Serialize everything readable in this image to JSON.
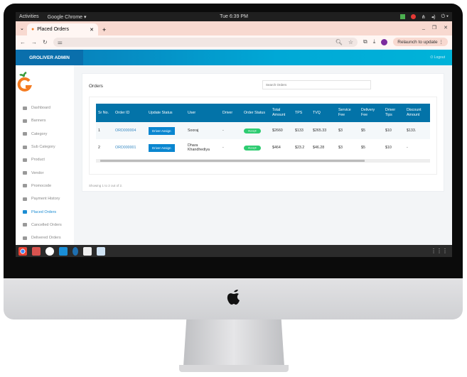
{
  "system": {
    "activities": "Activities",
    "app": "Google Chrome ▾",
    "clock": "Tue 6:39 PM"
  },
  "browser": {
    "tab_title": "Placed Orders",
    "relaunch": "Relaunch to update",
    "profile_initial": "T"
  },
  "app": {
    "brand": "GROLIVER ADMIN",
    "logout": "Logout",
    "accent": "#0373a8"
  },
  "sidebar": {
    "items": [
      {
        "label": "Dashboard",
        "icon": "dashboard-icon"
      },
      {
        "label": "Banners",
        "icon": "image-icon"
      },
      {
        "label": "Category",
        "icon": "list-icon"
      },
      {
        "label": "Sub Category",
        "icon": "list-icon"
      },
      {
        "label": "Product",
        "icon": "apple-icon"
      },
      {
        "label": "Vendor",
        "icon": "users-icon"
      },
      {
        "label": "Promocode",
        "icon": "code-icon"
      },
      {
        "label": "Payment History",
        "icon": "history-icon"
      },
      {
        "label": "Placed Orders",
        "icon": "cart-icon",
        "active": true
      },
      {
        "label": "Cancelled Orders",
        "icon": "cart-icon"
      },
      {
        "label": "Delivered Orders",
        "icon": "cart-icon"
      }
    ]
  },
  "orders": {
    "title": "Orders",
    "search_placeholder": "Search Orders",
    "columns": [
      "Sr No.",
      "Order ID",
      "Update Status",
      "User",
      "Driver",
      "Order Status",
      "Total Amount",
      "TPS",
      "TVQ",
      "Service Fee",
      "Delivery Fee",
      "Driver Tips",
      "Discount Amount"
    ],
    "rows": [
      {
        "sr": "1",
        "id": "ORD000004",
        "action": "Driver Assign",
        "user": "Sooraj",
        "driver": "-",
        "status": "Accept",
        "total": "$2660",
        "tps": "$133",
        "tvq": "$265.33",
        "service": "$3",
        "delivery": "$5",
        "tips": "$10",
        "discount": "$133."
      },
      {
        "sr": "2",
        "id": "ORD000001",
        "action": "Driver Assign",
        "user": "Dhara Khandhediya",
        "driver": "-",
        "status": "Accept",
        "total": "$464",
        "tps": "$23.2",
        "tvq": "$46.28",
        "service": "$3",
        "delivery": "$5",
        "tips": "$10",
        "discount": "-"
      }
    ],
    "showing": "Showing 1 to 2 out of 2."
  }
}
